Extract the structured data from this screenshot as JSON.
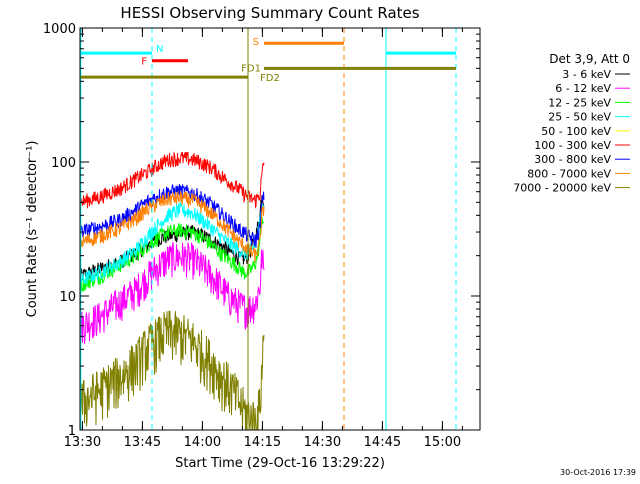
{
  "chart_data": {
    "type": "line",
    "title": "HESSI Observing Summary Count Rates",
    "xlabel": "Start Time (29-Oct-16 13:29:22)",
    "ylabel": "Count Rate (s⁻¹ detector⁻¹)",
    "x_units": "minutes after 13:29:22",
    "xlim": [
      0,
      100
    ],
    "ylim": [
      1,
      1000
    ],
    "y_scale": "log",
    "x_ticks": [
      {
        "x": 0.6,
        "label": "13:30"
      },
      {
        "x": 15.6,
        "label": "13:45"
      },
      {
        "x": 30.6,
        "label": "14:00"
      },
      {
        "x": 45.6,
        "label": "14:15"
      },
      {
        "x": 60.6,
        "label": "14:30"
      },
      {
        "x": 75.6,
        "label": "14:45"
      },
      {
        "x": 90.6,
        "label": "15:00"
      }
    ],
    "y_ticks": [
      {
        "y": 1,
        "label": "1"
      },
      {
        "y": 10,
        "label": "10"
      },
      {
        "y": 100,
        "label": "100"
      },
      {
        "y": 1000,
        "label": "1000"
      }
    ],
    "grid": false,
    "legend_header": "Det 3,9, Att 0",
    "legend_position": "right",
    "series": [
      {
        "name": "3 - 6 keV",
        "color": "#000000",
        "x": [
          0,
          5,
          10,
          14,
          17,
          20,
          22,
          25,
          28,
          30,
          33,
          35,
          37,
          39,
          40,
          41,
          42,
          43,
          44,
          45,
          45.5,
          46
        ],
        "values": [
          14,
          16,
          18,
          21,
          24,
          27,
          28,
          29,
          30,
          29,
          26,
          24,
          22,
          20,
          19,
          19,
          20,
          23,
          28,
          40,
          60,
          50
        ]
      },
      {
        "name": "6 - 12 keV",
        "color": "#ff00ff",
        "x": [
          0,
          5,
          10,
          14,
          17,
          20,
          22,
          25,
          28,
          30,
          33,
          35,
          37,
          39,
          40,
          41,
          42,
          43,
          44,
          45,
          45.5,
          46
        ],
        "values": [
          6,
          7,
          9,
          11,
          14,
          17,
          19,
          20,
          19,
          17,
          14,
          12,
          10,
          9,
          8.5,
          8.2,
          8,
          8.5,
          9,
          12,
          20,
          15
        ]
      },
      {
        "name": "12 - 25 keV",
        "color": "#00ff00",
        "x": [
          0,
          5,
          10,
          14,
          17,
          20,
          22,
          25,
          28,
          30,
          33,
          35,
          37,
          39,
          40,
          41,
          42,
          43,
          44,
          45,
          45.5,
          46
        ],
        "values": [
          12,
          14,
          17,
          20,
          24,
          28,
          30,
          31,
          30,
          28,
          24,
          21,
          19,
          17,
          16,
          15,
          15,
          16,
          18,
          25,
          40,
          32
        ]
      },
      {
        "name": "25 - 50 keV",
        "color": "#00ffff",
        "x": [
          0,
          5,
          10,
          14,
          17,
          20,
          22,
          25,
          28,
          30,
          33,
          35,
          37,
          39,
          40,
          41,
          42,
          43,
          44,
          45,
          45.5,
          46
        ],
        "values": [
          13,
          15,
          18,
          22,
          28,
          35,
          40,
          44,
          42,
          38,
          32,
          28,
          25,
          23,
          22,
          21,
          21,
          22,
          25,
          35,
          55,
          45
        ]
      },
      {
        "name": "50 - 100 keV",
        "color": "#ffff00",
        "x": [],
        "values": []
      },
      {
        "name": "100 - 300 keV",
        "color": "#ff0000",
        "x": [
          0,
          5,
          10,
          14,
          17,
          20,
          22,
          25,
          28,
          30,
          33,
          35,
          37,
          39,
          40,
          41,
          42,
          43,
          44,
          45,
          45.5,
          46
        ],
        "values": [
          50,
          55,
          63,
          75,
          85,
          97,
          104,
          107,
          105,
          100,
          90,
          80,
          72,
          65,
          62,
          58,
          55,
          53,
          52,
          58,
          80,
          100
        ]
      },
      {
        "name": "300 - 800 keV",
        "color": "#0000ff",
        "x": [
          0,
          5,
          10,
          14,
          17,
          20,
          22,
          25,
          28,
          30,
          33,
          35,
          37,
          39,
          40,
          41,
          42,
          43,
          44,
          45,
          45.5,
          46
        ],
        "values": [
          30,
          33,
          37,
          44,
          51,
          57,
          60,
          61,
          59,
          55,
          48,
          42,
          37,
          33,
          31,
          30,
          28,
          27,
          26,
          32,
          50,
          55
        ]
      },
      {
        "name": "800 - 7000 keV",
        "color": "#ff8000",
        "x": [
          0,
          5,
          10,
          14,
          17,
          20,
          22,
          25,
          28,
          30,
          33,
          35,
          37,
          39,
          40,
          41,
          42,
          43,
          44,
          45,
          45.5,
          46
        ],
        "values": [
          25,
          28,
          32,
          38,
          45,
          50,
          53,
          54,
          52,
          48,
          41,
          36,
          31,
          27,
          25,
          24,
          22,
          21,
          20,
          25,
          40,
          45
        ]
      },
      {
        "name": "7000 - 20000 keV",
        "color": "#808000",
        "x": [
          0,
          5,
          10,
          14,
          17,
          20,
          22,
          25,
          28,
          30,
          33,
          35,
          37,
          39,
          40,
          41,
          42,
          43,
          44,
          45,
          45.5,
          46
        ],
        "values": [
          1.6,
          2.0,
          2.5,
          3.2,
          4.2,
          5.0,
          5.5,
          5.2,
          4.7,
          4.0,
          3.2,
          2.6,
          2.2,
          1.8,
          1.6,
          1.4,
          1.3,
          1.2,
          1.2,
          1.5,
          3.0,
          5.0
        ]
      }
    ],
    "event_markers": [
      {
        "label": "N",
        "color": "#00ffff",
        "x_start": 0.2,
        "x_end": 18.0,
        "y": 650
      },
      {
        "label": "F",
        "color": "#ff0000",
        "x_start": 18.0,
        "x_end": 27.0,
        "y": 570
      },
      {
        "label": "S",
        "color": "#ff8000",
        "x_start": 46.0,
        "x_end": 66.0,
        "y": 770
      },
      {
        "label": "FD1",
        "color": "#808000",
        "x_start": 46.0,
        "x_end": 94.0,
        "y": 500
      },
      {
        "label": "FD2",
        "color": "#808000",
        "x_start": 0.2,
        "x_end": 42.0,
        "y": 430
      },
      {
        "label": "",
        "color": "#00ffff",
        "x_start": 76.5,
        "x_end": 94.0,
        "y": 650
      }
    ],
    "vertical_lines": [
      {
        "x": 0.2,
        "color": "#00ffff",
        "style": "solid"
      },
      {
        "x": 18.0,
        "color": "#00ffff",
        "style": "dashed"
      },
      {
        "x": 42.0,
        "color": "#808000",
        "style": "solid"
      },
      {
        "x": 66.0,
        "color": "#ff8000",
        "style": "dashed"
      },
      {
        "x": 76.5,
        "color": "#00ffff",
        "style": "solid"
      },
      {
        "x": 94.0,
        "color": "#00ffff",
        "style": "dashed"
      }
    ]
  },
  "footer_timestamp": "30-Oct-2016 17:39"
}
